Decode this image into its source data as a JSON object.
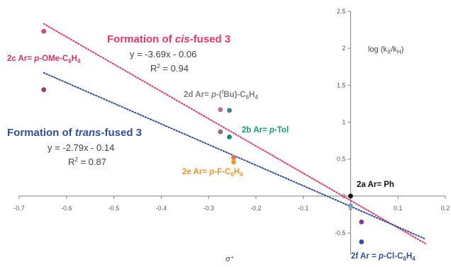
{
  "chart_data": {
    "type": "scatter",
    "xlim": [
      -0.7,
      0.2
    ],
    "ylim": [
      -0.5,
      2.5
    ],
    "xticks": [
      "-0.7",
      "-0.6",
      "-0.5",
      "-0.4",
      "-0.3",
      "-0.2",
      "-0.1",
      "0",
      "0.1",
      "0.2"
    ],
    "yticks": [
      "2.5",
      "2",
      "1.5",
      "1",
      "0.5",
      "0",
      "-0.5"
    ],
    "xlabel": "σ⁺",
    "ylabel": "log (k",
    "ylabel_sub1": "X",
    "ylabel_mid": "/k",
    "ylabel_sub2": "H",
    "ylabel_end": ")",
    "series": [
      {
        "name": "Formation of cis-fused 3",
        "title_pre": "Formation of ",
        "title_ital": "cis",
        "title_post": "-fused 3",
        "equation": "y = -3.69x - 0.06",
        "r2_pre": "R",
        "r2_sup": "2",
        "r2_post": " = 0.94",
        "color": "#e8386a",
        "marker": "#c85a86",
        "slope": -3.69,
        "intercept": -0.06,
        "x": [
          -0.648,
          -0.275,
          -0.256,
          -0.247,
          0.0,
          0.023
        ],
        "y": [
          2.23,
          1.17,
          1.16,
          0.52,
          0.0,
          -0.35
        ]
      },
      {
        "name": "Formation of trans-fused 3",
        "title_pre": "Formation of ",
        "title_ital": "trans",
        "title_post": "-fused 3",
        "equation": "y = -2.79x - 0.14",
        "r2_pre": "R",
        "r2_sup": "2",
        "r2_post": " = 0.87",
        "color": "#2e4fa0",
        "marker": "#2f5cb8",
        "slope": -2.79,
        "intercept": -0.14,
        "x": [
          -0.648,
          -0.275,
          -0.256,
          -0.247,
          0.0,
          0.023
        ],
        "y": [
          1.44,
          0.87,
          0.8,
          0.46,
          -0.13,
          -0.62
        ]
      }
    ],
    "points": [
      {
        "id": "2c",
        "x": -0.648,
        "y_cis": 2.23,
        "y_trans": 1.44,
        "label_pre": "2c Ar= ",
        "label_ital": "p",
        "label_post": "-OMe-C",
        "sub": "6",
        "label_end": "H",
        "sub2": "4",
        "color": "#d6336c"
      },
      {
        "id": "2d",
        "x": -0.275,
        "y_cis": 1.17,
        "y_trans": 0.87,
        "label_pre": "2d Ar= ",
        "label_ital": "p",
        "label_post": "-(",
        "sup": "t",
        "label_mid": "Bu)-C",
        "sub": "6",
        "label_end": "H",
        "sub2": "4",
        "color": "#7f7f7f"
      },
      {
        "id": "2b",
        "x": -0.256,
        "y_cis": 1.16,
        "y_trans": 0.8,
        "label_pre": "2b Ar= ",
        "label_ital": "p",
        "label_post": "-Tol",
        "color": "#1a9a6e"
      },
      {
        "id": "2e",
        "x": -0.247,
        "y_cis": 0.52,
        "y_trans": 0.46,
        "label_pre": "2e Ar= ",
        "label_ital": "p",
        "label_post": "-F-C",
        "sub": "6",
        "label_end": "H",
        "sub2": "4",
        "color": "#f0962e"
      },
      {
        "id": "2a",
        "x": 0.0,
        "y_cis": 0.0,
        "y_trans": -0.13,
        "label_pre": "2a Ar= Ph",
        "color": "#111111"
      },
      {
        "id": "2f",
        "x": 0.023,
        "y_cis": -0.35,
        "y_trans": -0.62,
        "label_pre": "2f Ar = ",
        "label_ital": "p",
        "label_post": "-Cl-C",
        "sub": "6",
        "label_end": "H",
        "sub2": "4",
        "color": "#2e4fa0"
      }
    ],
    "marker_colors": {
      "2c": [
        "#d04d7a",
        "#9b3a6e"
      ],
      "2d": [
        "#c46a8c",
        "#8a6a7c"
      ],
      "2b": [
        "#3f7fa0",
        "#1d8a6e"
      ],
      "2e": [
        "#e07b4a",
        "#f0962e"
      ],
      "2a": [
        "#111111",
        "#7aa2c0"
      ],
      "2f": [
        "#8a3a86",
        "#2e4fa0"
      ]
    }
  }
}
